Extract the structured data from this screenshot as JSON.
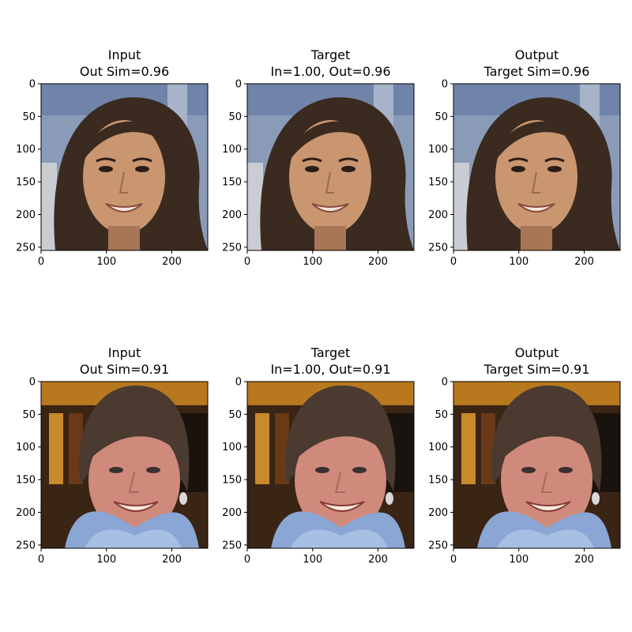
{
  "figure": {
    "panels": [
      {
        "title_line1": "Input",
        "title_line2": "Out Sim=0.96",
        "image": "smiling woman with long brown hair, braces, blurred blue background",
        "tone": "row1"
      },
      {
        "title_line1": "Target",
        "title_line2": "In=1.00, Out=0.96",
        "image": "smiling woman with long brown hair, braces, blurred blue background",
        "tone": "row1"
      },
      {
        "title_line1": "Output",
        "title_line2": "Target Sim=0.96",
        "image": "smiling woman with long brown hair, braces, blurred blue background",
        "tone": "row1"
      },
      {
        "title_line1": "Input",
        "title_line2": "Out Sim=0.91",
        "image": "smiling woman with short gray-brown hair, blue scarf, earrings, wooden chair background",
        "tone": "row2"
      },
      {
        "title_line1": "Target",
        "title_line2": "In=1.00, Out=0.91",
        "image": "smiling woman with short gray-brown hair, blue scarf, earrings, wooden chair background",
        "tone": "row2"
      },
      {
        "title_line1": "Output",
        "title_line2": "Target Sim=0.91",
        "image": "smiling woman with short gray-brown hair, blue scarf, earrings, wooden chair background",
        "tone": "row2"
      }
    ],
    "x_ticks": [
      "0",
      "100",
      "200"
    ],
    "y_ticks": [
      "0",
      "50",
      "100",
      "150",
      "200",
      "250"
    ],
    "axis_range": [
      0,
      255
    ]
  }
}
